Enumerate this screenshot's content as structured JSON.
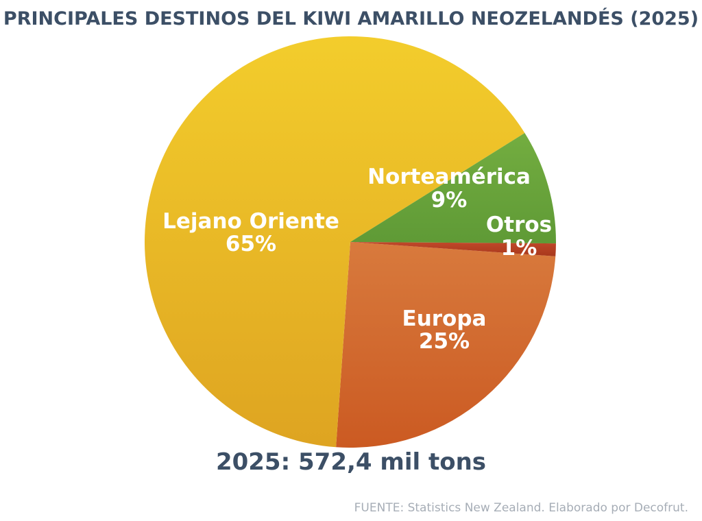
{
  "chart_data": {
    "type": "pie",
    "title": "PRINCIPALES DESTINOS DEL KIWI AMARILLO NEOZELANDÉS (2025)",
    "slices": [
      {
        "label": "Europa",
        "value": 25,
        "value_label": "25%",
        "color": "#d2692f"
      },
      {
        "label": "Lejano Oriente",
        "value": 65,
        "value_label": "65%",
        "color": "#e8b723"
      },
      {
        "label": "Norteamérica",
        "value": 9,
        "value_label": "9%",
        "color": "#6aa43a"
      },
      {
        "label": "Otros",
        "value": 1,
        "value_label": "1%",
        "color": "#b5401f"
      }
    ]
  },
  "total_label": "2025: 572,4 mil tons",
  "source": "FUENTE: Statistics New Zealand. Elaborado por Decofrut."
}
